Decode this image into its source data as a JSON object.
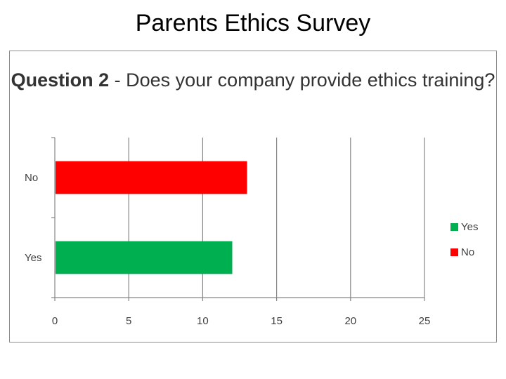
{
  "slide": {
    "title": "Parents Ethics Survey"
  },
  "chart_data": {
    "type": "bar",
    "orientation": "horizontal",
    "title_prefix": "Question 2",
    "title_rest": " - Does your company provide ethics training?",
    "categories": [
      "Yes",
      "No"
    ],
    "values": [
      12,
      13
    ],
    "colors": [
      "#00b050",
      "#ff0000"
    ],
    "xlim": [
      0,
      25
    ],
    "xticks": [
      0,
      5,
      10,
      15,
      20,
      25
    ],
    "grid": "vertical",
    "legend_position": "right",
    "legend": [
      {
        "label": "Yes",
        "color": "#00b050"
      },
      {
        "label": "No",
        "color": "#ff0000"
      }
    ]
  }
}
